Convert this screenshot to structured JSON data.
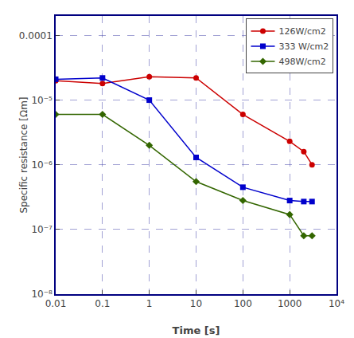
{
  "chart_data": {
    "type": "line",
    "xlabel": "Time [s]",
    "ylabel": "Specific resistance [Ωm]",
    "log": true,
    "grid": true,
    "legend": "upper right",
    "x": [
      0.01,
      0.1,
      1,
      10,
      100,
      1000,
      2000,
      3000
    ],
    "series": [
      {
        "name": "126W/cm2",
        "color": "#cc0000",
        "marker": "circle",
        "values": [
          2e-05,
          1.8e-05,
          2.3e-05,
          2.2e-05,
          6e-06,
          2.3e-06,
          1.6e-06,
          1e-06
        ]
      },
      {
        "name": "333 W/cm2",
        "color": "#0000cc",
        "marker": "square",
        "values": [
          2.1e-05,
          2.2e-05,
          1e-05,
          1.3e-06,
          4.5e-07,
          2.8e-07,
          2.7e-07,
          2.7e-07
        ]
      },
      {
        "name": "498W/cm2",
        "color": "#336600",
        "marker": "diamond",
        "values": [
          6e-06,
          6e-06,
          2e-06,
          5.5e-07,
          2.8e-07,
          1.7e-07,
          8e-08,
          8e-08
        ]
      }
    ],
    "xlim": [
      0.01,
      10000
    ],
    "ylim": [
      1e-08,
      0.0002
    ],
    "xticks": [
      0.01,
      0.1,
      1,
      10,
      100,
      1000,
      {
        "value": 10000,
        "label": "10⁴"
      }
    ],
    "yticks": [
      {
        "value": 1e-08,
        "label": "10⁻⁸"
      },
      {
        "value": 1e-07,
        "label": "10⁻⁷"
      },
      {
        "value": 1e-06,
        "label": "10⁻⁶"
      },
      {
        "value": 1e-05,
        "label": "10⁻⁵"
      },
      0.0001
    ]
  }
}
